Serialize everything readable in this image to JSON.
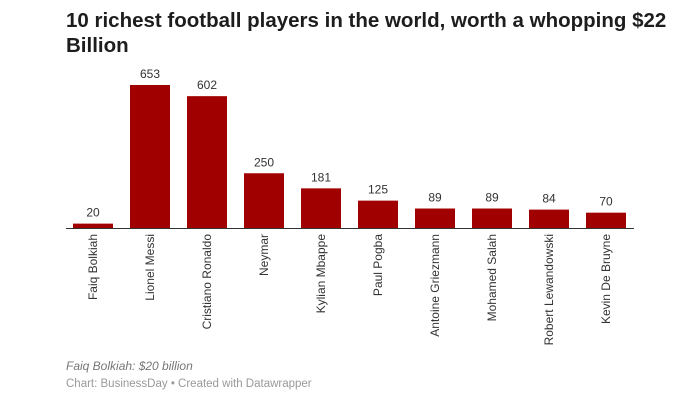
{
  "title": "10 richest football players in the world, worth a whopping $22 Billion",
  "notes": "Faiq Bolkiah: $20 billion",
  "source": "Chart: BusinessDay • Created with Datawrapper",
  "chart_data": {
    "type": "bar",
    "title": "10 richest football players in the world, worth a whopping $22 Billion",
    "categories": [
      "Faiq Bolkiah",
      "Lionel Messi",
      "Cristiano Ronaldo",
      "Neymar",
      "Kylian Mbappe",
      "Paul Pogba",
      "Antoine Griezmann",
      "Mohamed Salah",
      "Robert Lewandowski",
      "Kevin De Bruyne"
    ],
    "values": [
      20,
      653,
      602,
      250,
      181,
      125,
      89,
      89,
      84,
      70
    ],
    "xlabel": "",
    "ylabel": "",
    "ylim": [
      0,
      653
    ],
    "grid": false,
    "color": "#a00000"
  }
}
